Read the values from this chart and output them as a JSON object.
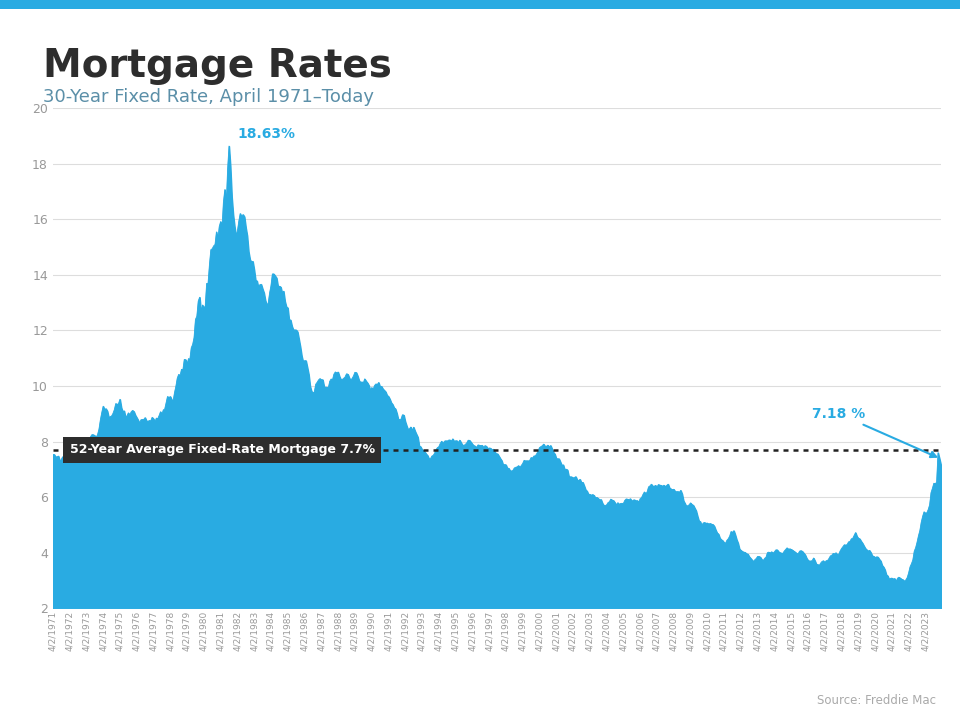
{
  "title": "Mortgage Rates",
  "subtitle": "30-Year Fixed Rate, April 1971–Today",
  "source": "Source: Freddie Mac",
  "fill_color": "#29ABE2",
  "avg_line_value": 7.7,
  "avg_label": "52-Year Average Fixed-Rate Mortgage 7.7%",
  "avg_label_bg": "#2D2D2D",
  "peak_label": "18.63%",
  "peak_color": "#29ABE2",
  "current_label": "7.18 %",
  "current_color": "#29ABE2",
  "current_value": 7.18,
  "ylim": [
    2,
    20
  ],
  "yticks": [
    2,
    4,
    6,
    8,
    10,
    12,
    14,
    16,
    18,
    20
  ],
  "header_bar_color": "#29ABE2",
  "title_color": "#2D2D2D",
  "subtitle_color": "#5B8FA8",
  "background_color": "#FFFFFF",
  "tick_color": "#999999",
  "grid_color": "#DDDDDD",
  "x_labels": [
    "4/2/1971",
    "4/2/1972",
    "4/2/1973",
    "4/2/1974",
    "4/2/1975",
    "4/2/1976",
    "4/2/1977",
    "4/2/1978",
    "4/2/1979",
    "4/2/1980",
    "4/2/1981",
    "4/2/1982",
    "4/2/1983",
    "4/2/1984",
    "4/2/1985",
    "4/2/1986",
    "4/2/1987",
    "4/2/1988",
    "4/2/1989",
    "4/2/1990",
    "4/2/1991",
    "4/2/1992",
    "4/2/1993",
    "4/2/1994",
    "4/2/1995",
    "4/2/1996",
    "4/2/1997",
    "4/2/1998",
    "4/2/1999",
    "4/2/2000",
    "4/2/2001",
    "4/2/2002",
    "4/2/2003",
    "4/2/2004",
    "4/2/2005",
    "4/2/2006",
    "4/2/2007",
    "4/2/2008",
    "4/2/2009",
    "4/2/2010",
    "4/2/2011",
    "4/2/2012",
    "4/2/2013",
    "4/2/2014",
    "4/2/2015",
    "4/2/2016",
    "4/2/2017",
    "4/2/2018",
    "4/2/2019",
    "4/2/2020",
    "4/2/2021",
    "4/2/2022",
    "4/2/2023"
  ],
  "yearly_rates": [
    7.54,
    7.38,
    8.04,
    9.19,
    9.05,
    8.7,
    8.85,
    9.64,
    11.2,
    13.74,
    16.63,
    16.04,
    13.24,
    13.88,
    12.43,
    10.19,
    10.21,
    10.34,
    10.32,
    10.13,
    9.25,
    8.39,
    7.31,
    8.38,
    7.93,
    7.81,
    7.6,
    6.94,
    7.44,
    8.05,
    6.97,
    6.54,
    5.83,
    5.84,
    5.87,
    6.41,
    6.34,
    6.03,
    5.04,
    4.69,
    4.45,
    3.66,
    3.98,
    4.17,
    3.85,
    3.65,
    3.99,
    4.54,
    3.94,
    3.11,
    2.96,
    5.34,
    7.18
  ]
}
